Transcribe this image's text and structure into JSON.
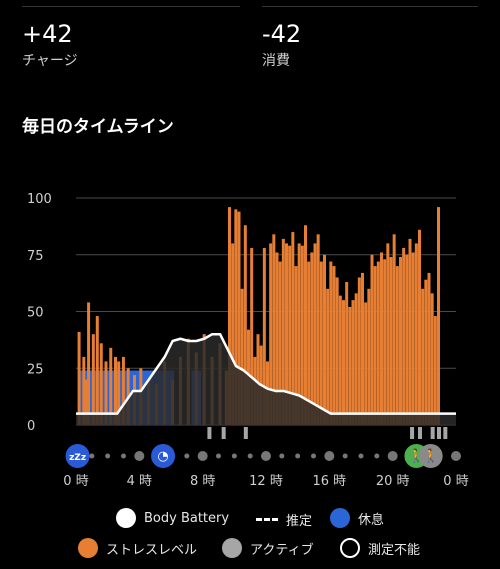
{
  "summary": {
    "charge_value": "+42",
    "charge_label": "チャージ",
    "consume_value": "-42",
    "consume_label": "消費"
  },
  "section_title": "毎日のタイムライン",
  "chart_data": {
    "type": "area",
    "title": "",
    "xlabel": "",
    "ylabel": "",
    "ylim": [
      0,
      100
    ],
    "xlim": [
      0,
      24
    ],
    "y_ticks": [
      "0",
      "25",
      "50",
      "75",
      "100"
    ],
    "x_ticks": [
      {
        "h": 0,
        "label": "0 時"
      },
      {
        "h": 4,
        "label": "4 時"
      },
      {
        "h": 8,
        "label": "8 時"
      },
      {
        "h": 12,
        "label": "12 時"
      },
      {
        "h": 16,
        "label": "16 時"
      },
      {
        "h": 20,
        "label": "20 時"
      },
      {
        "h": 24,
        "label": "0 時"
      }
    ],
    "series": [
      {
        "name": "Body Battery",
        "x": [
          0,
          2.1,
          2.6,
          3.1,
          3.6,
          4.1,
          4.6,
          5.1,
          5.6,
          6.1,
          6.6,
          7.1,
          7.6,
          8.1,
          8.6,
          9.1,
          9.6,
          10.1,
          10.6,
          11.1,
          11.6,
          12.1,
          12.6,
          13.1,
          13.6,
          14.1,
          14.6,
          15.1,
          15.6,
          16.1,
          16.6,
          17.1,
          18,
          19,
          20,
          21,
          22,
          23,
          24
        ],
        "values": [
          5,
          5,
          5,
          10,
          15,
          15,
          20,
          25,
          30,
          37,
          38,
          37,
          37,
          38,
          40,
          40,
          33,
          26,
          24,
          21,
          18,
          16,
          15,
          15,
          14,
          13,
          11,
          9,
          7,
          5,
          5,
          5,
          5,
          5,
          5,
          5,
          5,
          5,
          5
        ]
      },
      {
        "name": "ストレスレベル",
        "color": "#e67e33",
        "x": [
          0.1,
          0.4,
          0.55,
          0.7,
          1.0,
          1.25,
          1.5,
          1.8,
          2.1,
          2.4,
          2.6,
          2.9,
          3.2,
          3.6,
          4.0,
          4.5,
          5.0,
          5.5,
          6.0,
          6.5,
          7.0,
          7.5,
          8.0,
          8.5,
          9.0,
          9.4,
          9.6,
          9.8,
          10.0,
          10.2,
          10.4,
          10.6,
          10.8,
          11.0,
          11.2,
          11.4,
          11.6,
          11.8,
          12.0,
          12.2,
          12.4,
          12.6,
          12.8,
          13.0,
          13.2,
          13.4,
          13.6,
          13.8,
          14.0,
          14.2,
          14.4,
          14.6,
          14.8,
          15.0,
          15.2,
          15.4,
          15.6,
          15.8,
          16.0,
          16.2,
          16.4,
          16.6,
          16.8,
          17.0,
          17.2,
          17.4,
          17.6,
          17.8,
          18.0,
          18.2,
          18.4,
          18.6,
          18.8,
          19.0,
          19.2,
          19.4,
          19.6,
          19.8,
          20.0,
          20.2,
          20.4,
          20.6,
          20.8,
          21.0,
          21.2,
          21.4,
          21.6,
          21.8,
          22.0,
          22.2,
          22.4,
          22.6,
          22.8
        ],
        "values": [
          41,
          30,
          20,
          54,
          40,
          48,
          36,
          28,
          34,
          30,
          28,
          30,
          25,
          22,
          25,
          20,
          18,
          28,
          20,
          30,
          38,
          32,
          40,
          30,
          36,
          24,
          96,
          80,
          95,
          94,
          60,
          88,
          42,
          78,
          30,
          40,
          35,
          78,
          28,
          80,
          84,
          76,
          72,
          82,
          80,
          79,
          85,
          70,
          80,
          79,
          88,
          72,
          76,
          80,
          84,
          72,
          75,
          60,
          72,
          70,
          65,
          57,
          55,
          63,
          52,
          55,
          58,
          65,
          67,
          54,
          60,
          75,
          70,
          72,
          76,
          73,
          80,
          74,
          84,
          70,
          74,
          78,
          75,
          82,
          76,
          80,
          86,
          60,
          64,
          67,
          58,
          48,
          96
        ]
      }
    ],
    "rest_blocks": [
      [
        0.2,
        6.2
      ],
      [
        7.3,
        7.9
      ]
    ],
    "activity_ticks": [
      8.3,
      9.2,
      10.6,
      21.1,
      21.6,
      22.4,
      22.8,
      23.2
    ],
    "markers": [
      {
        "name": "sleep-icon",
        "h": 0.1,
        "color": "#2a5bd7",
        "glyph": "zZz"
      },
      {
        "name": "clock-icon",
        "h": 5.5,
        "color": "#2a5bd7",
        "glyph": "◔"
      },
      {
        "name": "walk-icon",
        "h": 21.5,
        "color": "#4caf50",
        "glyph": "🚶"
      },
      {
        "name": "walk-gray-icon",
        "h": 22.4,
        "color": "#8a8a8a",
        "glyph": "🚶"
      }
    ]
  },
  "legend": {
    "body_battery": "Body Battery",
    "estimate": "推定",
    "rest": "休息",
    "stress": "ストレスレベル",
    "active": "アクティブ",
    "unmeasurable": "測定不能"
  },
  "colors": {
    "stress": "#e67e33",
    "rest": "#2a66d6",
    "active": "#a6a6a6",
    "battery_line": "#ffffff",
    "gridline": "#4a4a4a"
  }
}
